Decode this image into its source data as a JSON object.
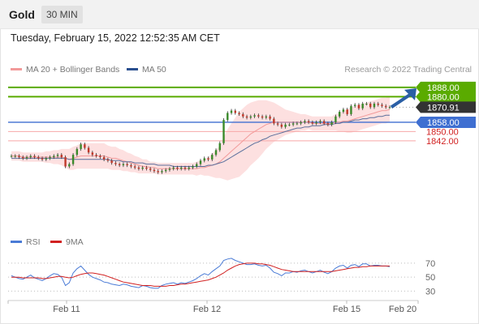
{
  "header": {
    "instrument": "Gold",
    "timeframe": "30 MIN"
  },
  "timestamp": "Tuesday, February 15, 2022 12:52:35 AM CET",
  "legend": {
    "ma20_label": "MA 20 + Bollinger Bands",
    "ma50_label": "MA 50",
    "rsi_label": "RSI",
    "rsi_ma_label": "9MA"
  },
  "copyright": "Research © 2022 Trading Central",
  "colors": {
    "target": "#5aab00",
    "support": "#3f6fd1",
    "resistance_red": "#f7a8a8",
    "level_text_red": "#d11f1f",
    "current": "#333333",
    "arrow": "#2a5fa5",
    "ma20": "#f29a9a",
    "ma50": "#5a6f9c",
    "bollinger_fill": "#fde0e0",
    "candle_up": "#3a8a2a",
    "candle_down": "#c0392b",
    "rsi": "#4a7bd6",
    "rsi_ma": "#d12020"
  },
  "chart_data": [
    {
      "type": "line",
      "name": "price",
      "ylim": [
        1775,
        1897
      ],
      "x_ticks": [
        "Feb 11",
        "Feb 12",
        "Feb 15",
        "Feb 20"
      ],
      "levels": [
        {
          "value": 1888.0,
          "label": "1888.00",
          "kind": "target"
        },
        {
          "value": 1880.0,
          "label": "1880.00",
          "kind": "target"
        },
        {
          "value": 1870.91,
          "label": "1870.91",
          "kind": "current"
        },
        {
          "value": 1858.0,
          "label": "1858.00",
          "kind": "support"
        },
        {
          "value": 1850.0,
          "label": "1850.00",
          "kind": "level"
        },
        {
          "value": 1842.0,
          "label": "1842.00",
          "kind": "level"
        }
      ],
      "close": [
        1829,
        1829,
        1828,
        1827,
        1828,
        1829,
        1828,
        1827,
        1826,
        1827,
        1828,
        1829,
        1830,
        1828,
        1820,
        1822,
        1830,
        1835,
        1839,
        1836,
        1832,
        1830,
        1829,
        1828,
        1826,
        1825,
        1823,
        1822,
        1821,
        1822,
        1821,
        1820,
        1819,
        1818,
        1819,
        1818,
        1817,
        1816,
        1815,
        1816,
        1817,
        1818,
        1819,
        1818,
        1819,
        1818,
        1819,
        1820,
        1822,
        1825,
        1827,
        1826,
        1830,
        1834,
        1840,
        1860,
        1866,
        1868,
        1866,
        1865,
        1863,
        1862,
        1863,
        1864,
        1863,
        1862,
        1863,
        1861,
        1857,
        1856,
        1854,
        1856,
        1856,
        1857,
        1857,
        1858,
        1859,
        1858,
        1857,
        1858,
        1859,
        1857,
        1856,
        1858,
        1863,
        1867,
        1869,
        1865,
        1872,
        1873,
        1870,
        1874,
        1874,
        1871,
        1874,
        1873,
        1872,
        1871,
        1871
      ],
      "open": [
        1829,
        1829,
        1829,
        1828,
        1827,
        1828,
        1829,
        1828,
        1827,
        1826,
        1827,
        1828,
        1829,
        1830,
        1828,
        1820,
        1822,
        1830,
        1835,
        1839,
        1836,
        1832,
        1830,
        1829,
        1828,
        1826,
        1825,
        1823,
        1822,
        1821,
        1822,
        1821,
        1820,
        1819,
        1818,
        1819,
        1818,
        1817,
        1816,
        1815,
        1816,
        1817,
        1818,
        1819,
        1818,
        1819,
        1818,
        1819,
        1820,
        1822,
        1825,
        1827,
        1826,
        1830,
        1834,
        1840,
        1860,
        1866,
        1868,
        1866,
        1865,
        1863,
        1862,
        1863,
        1864,
        1863,
        1862,
        1863,
        1861,
        1857,
        1856,
        1854,
        1856,
        1856,
        1857,
        1857,
        1858,
        1859,
        1858,
        1857,
        1858,
        1859,
        1857,
        1856,
        1858,
        1863,
        1867,
        1869,
        1865,
        1872,
        1873,
        1870,
        1874,
        1874,
        1871,
        1874,
        1873,
        1872,
        1871
      ],
      "ma20": [
        1829,
        1829,
        1829,
        1828,
        1828,
        1828,
        1828,
        1828,
        1828,
        1828,
        1828,
        1828,
        1828,
        1828,
        1827,
        1826,
        1827,
        1828,
        1829,
        1829,
        1829,
        1829,
        1829,
        1829,
        1829,
        1828,
        1827,
        1827,
        1826,
        1825,
        1824,
        1823,
        1822,
        1821,
        1820,
        1820,
        1819,
        1819,
        1818,
        1818,
        1818,
        1818,
        1818,
        1818,
        1818,
        1818,
        1818,
        1818,
        1818,
        1819,
        1819,
        1820,
        1821,
        1822,
        1824,
        1827,
        1830,
        1833,
        1836,
        1839,
        1842,
        1845,
        1848,
        1850,
        1852,
        1854,
        1856,
        1857,
        1858,
        1858,
        1858,
        1858,
        1858,
        1858,
        1858,
        1858,
        1858,
        1858,
        1857,
        1857,
        1857,
        1857,
        1857,
        1857,
        1858,
        1858,
        1859,
        1859,
        1860,
        1861,
        1862,
        1863,
        1864,
        1865,
        1866,
        1867,
        1868,
        1868,
        1869
      ],
      "ma50": [
        1827,
        1827,
        1827,
        1827,
        1827,
        1827,
        1827,
        1827,
        1827,
        1827,
        1827,
        1827,
        1827,
        1827,
        1827,
        1826,
        1826,
        1826,
        1826,
        1826,
        1826,
        1826,
        1826,
        1826,
        1826,
        1826,
        1825,
        1825,
        1825,
        1824,
        1824,
        1824,
        1823,
        1823,
        1823,
        1822,
        1822,
        1822,
        1821,
        1821,
        1821,
        1821,
        1820,
        1820,
        1820,
        1820,
        1820,
        1820,
        1820,
        1820,
        1820,
        1821,
        1821,
        1822,
        1823,
        1824,
        1826,
        1828,
        1830,
        1832,
        1834,
        1836,
        1838,
        1840,
        1841,
        1843,
        1844,
        1846,
        1847,
        1848,
        1849,
        1850,
        1851,
        1852,
        1853,
        1853,
        1854,
        1854,
        1855,
        1855,
        1855,
        1856,
        1856,
        1856,
        1857,
        1857,
        1858,
        1858,
        1859,
        1860,
        1860,
        1861,
        1861,
        1862,
        1862,
        1863,
        1863,
        1864,
        1864
      ],
      "bb_width": [
        4,
        4,
        4,
        4,
        4,
        4,
        4,
        4,
        4,
        5,
        5,
        6,
        6,
        7,
        8,
        9,
        10,
        10,
        11,
        11,
        11,
        11,
        11,
        11,
        11,
        10,
        10,
        10,
        9,
        9,
        8,
        8,
        7,
        7,
        6,
        6,
        5,
        5,
        5,
        5,
        5,
        5,
        5,
        5,
        5,
        5,
        5,
        5,
        6,
        6,
        7,
        8,
        10,
        12,
        14,
        18,
        22,
        24,
        26,
        28,
        28,
        28,
        27,
        26,
        25,
        23,
        21,
        19,
        17,
        15,
        13,
        11,
        10,
        9,
        8,
        7,
        7,
        6,
        6,
        6,
        6,
        6,
        6,
        6,
        7,
        8,
        9,
        10,
        11,
        11,
        11,
        11,
        11,
        11,
        11,
        11,
        11,
        11,
        11
      ]
    },
    {
      "type": "line",
      "name": "RSI",
      "ylim": [
        20,
        85
      ],
      "y_ticks": [
        70,
        50,
        30
      ],
      "rsi": [
        52,
        50,
        48,
        47,
        50,
        53,
        49,
        47,
        45,
        48,
        52,
        55,
        54,
        50,
        38,
        42,
        56,
        62,
        66,
        60,
        54,
        50,
        48,
        46,
        43,
        42,
        40,
        39,
        38,
        40,
        39,
        37,
        36,
        35,
        38,
        37,
        35,
        34,
        34,
        38,
        40,
        41,
        42,
        40,
        42,
        41,
        43,
        45,
        48,
        52,
        55,
        53,
        58,
        62,
        66,
        74,
        76,
        77,
        74,
        72,
        70,
        68,
        68,
        69,
        67,
        66,
        67,
        63,
        57,
        55,
        52,
        56,
        56,
        58,
        57,
        59,
        60,
        58,
        56,
        58,
        60,
        57,
        55,
        58,
        63,
        66,
        67,
        63,
        67,
        68,
        65,
        69,
        69,
        66,
        67,
        67,
        66,
        66,
        65
      ],
      "rsi_ma": [
        50,
        50,
        50,
        49,
        49,
        49,
        49,
        49,
        48,
        48,
        49,
        50,
        51,
        51,
        50,
        49,
        50,
        52,
        54,
        55,
        56,
        56,
        55,
        54,
        53,
        51,
        49,
        47,
        45,
        43,
        42,
        41,
        40,
        39,
        38,
        38,
        38,
        37,
        37,
        37,
        37,
        38,
        38,
        39,
        40,
        40,
        41,
        42,
        43,
        44,
        45,
        46,
        48,
        50,
        53,
        56,
        60,
        63,
        66,
        68,
        69,
        70,
        70,
        70,
        69,
        69,
        68,
        67,
        65,
        63,
        61,
        60,
        59,
        58,
        58,
        58,
        58,
        58,
        58,
        58,
        58,
        58,
        58,
        58,
        59,
        60,
        61,
        62,
        63,
        64,
        64,
        65,
        65,
        66,
        66,
        66,
        66,
        66,
        66
      ]
    }
  ]
}
